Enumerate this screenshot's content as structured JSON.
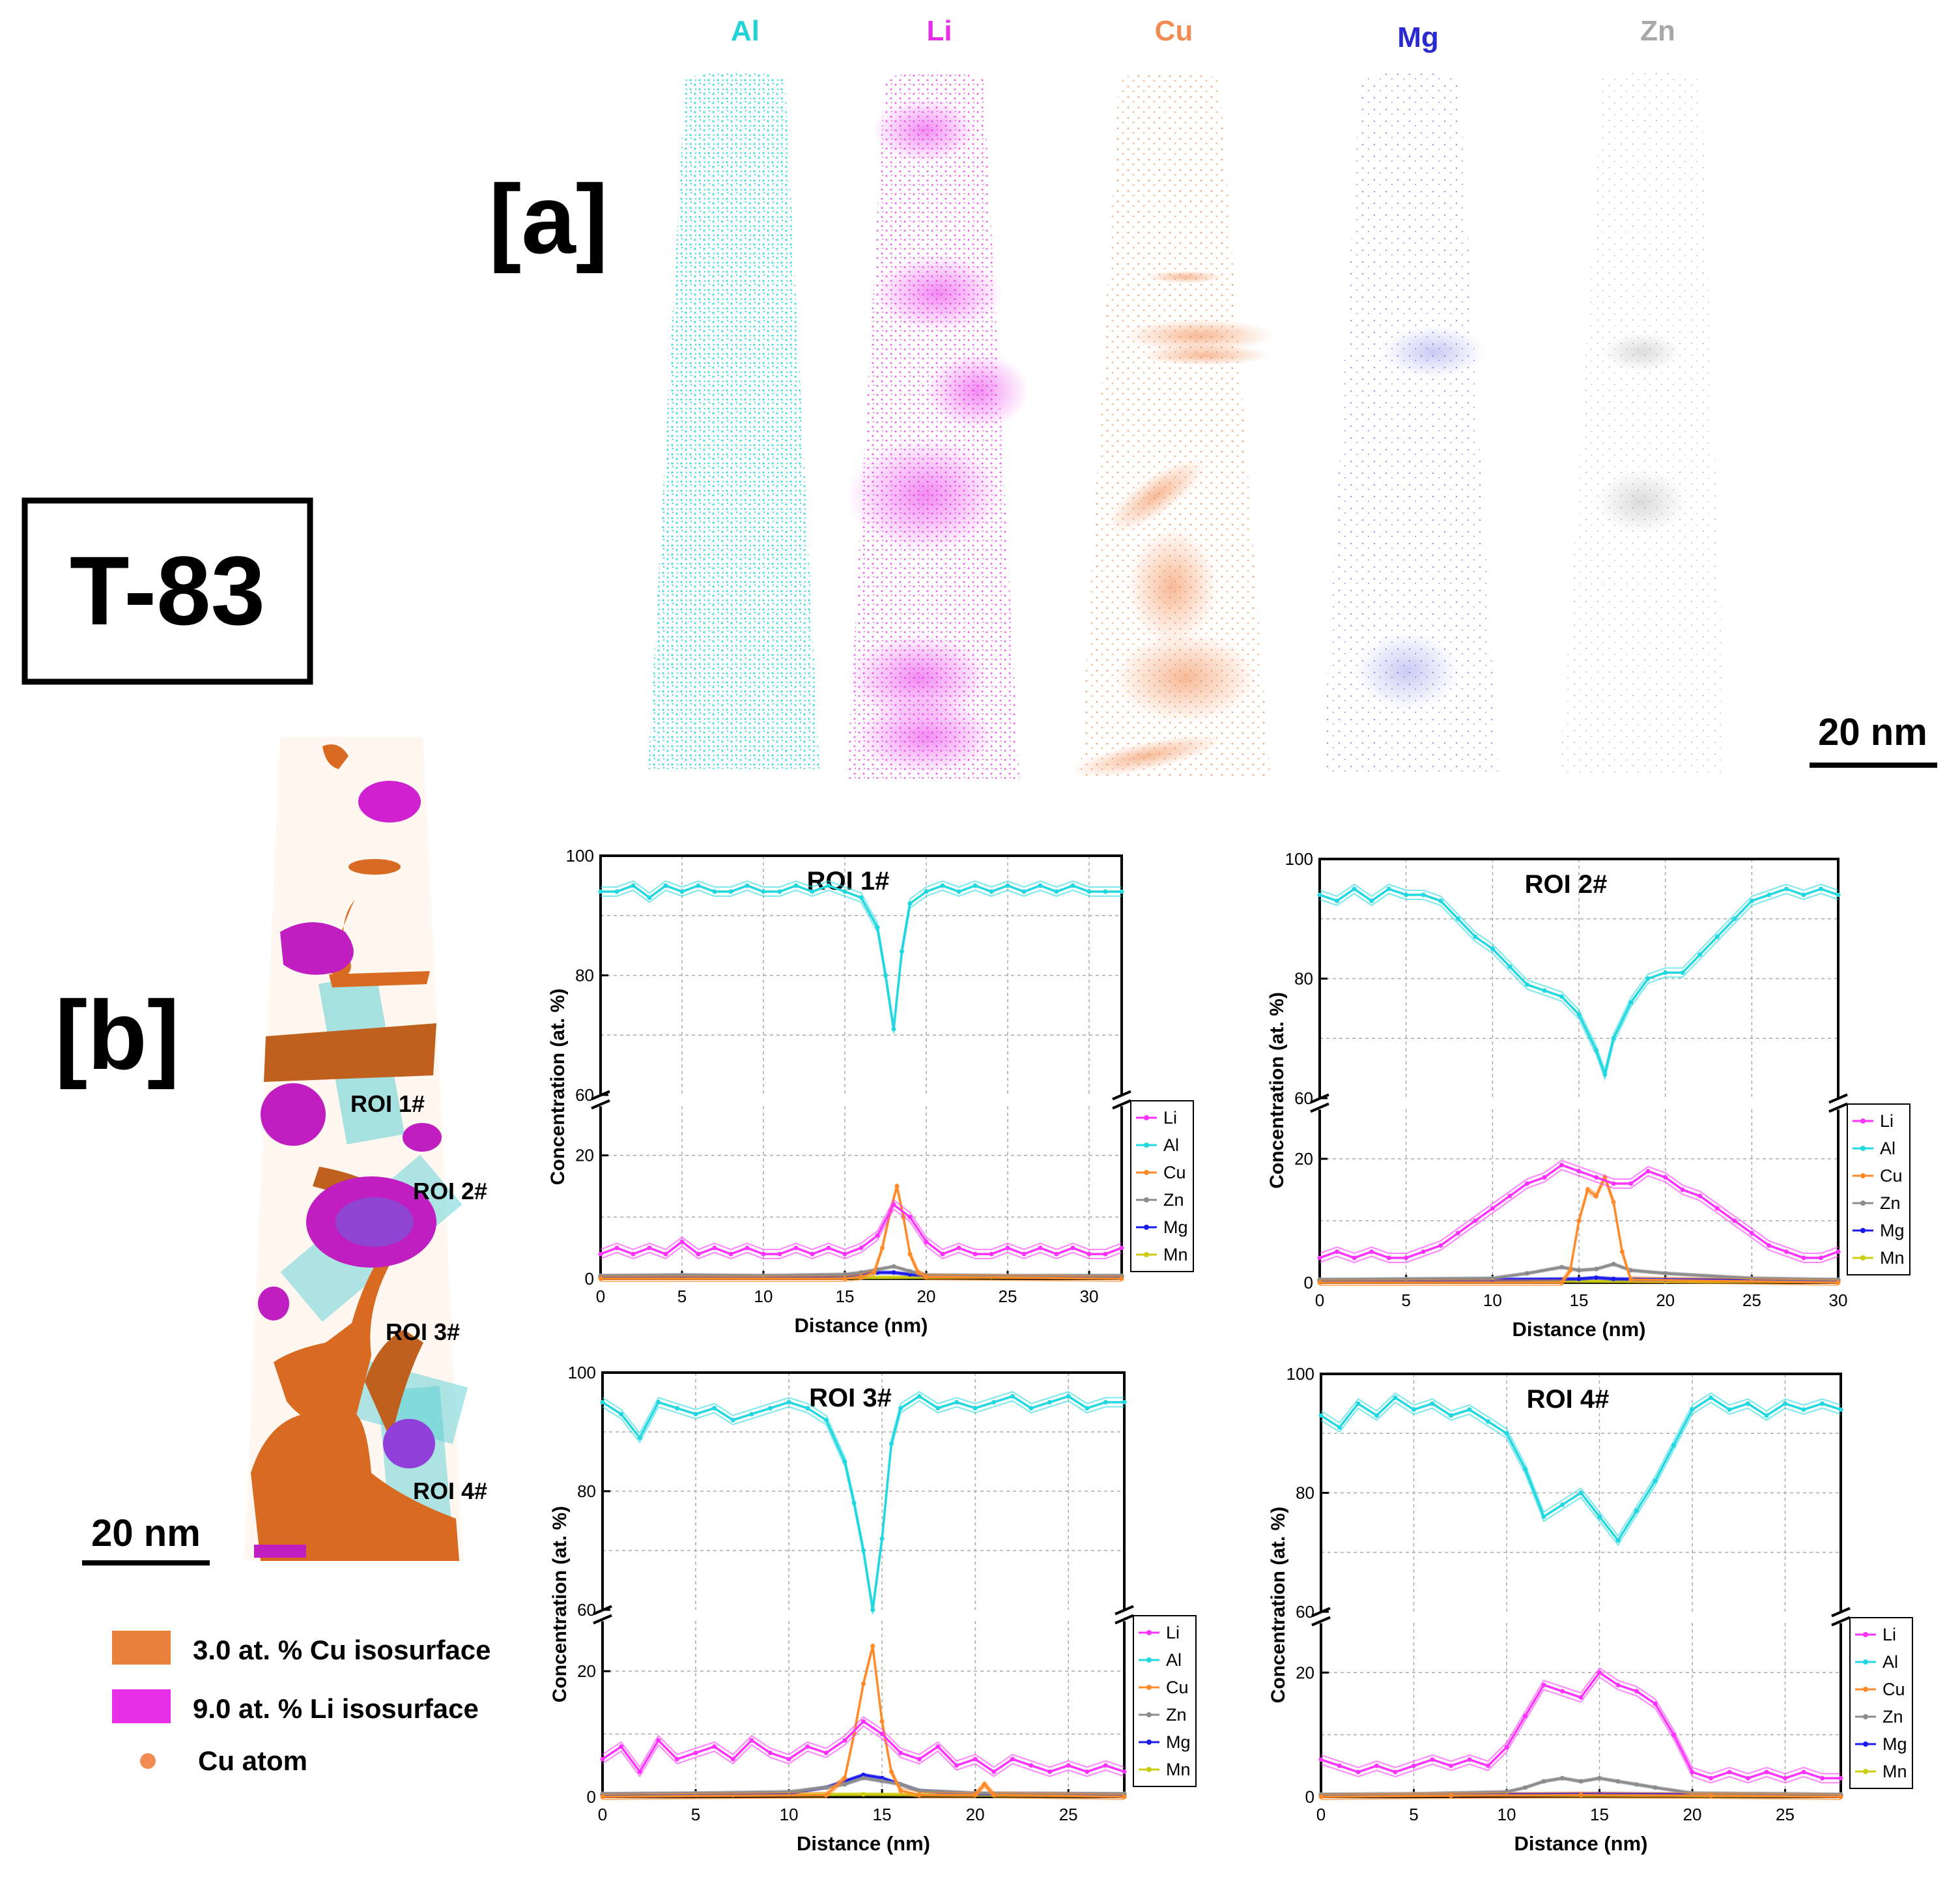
{
  "sample_label": "T-83",
  "panel_a": {
    "label": "[a]",
    "elements": [
      {
        "name": "Al",
        "color": "#22d3d8"
      },
      {
        "name": "Li",
        "color": "#e62fe6"
      },
      {
        "name": "Cu",
        "color": "#f08c52"
      },
      {
        "name": "Mg",
        "color": "#2a2ad0"
      },
      {
        "name": "Zn",
        "color": "#a8a8a8"
      }
    ],
    "scale_bar": "20 nm"
  },
  "panel_b": {
    "label": "[b]",
    "roi_labels": [
      "ROI 1#",
      "ROI 2#",
      "ROI 3#",
      "ROI 4#"
    ],
    "scale_bar": "20 nm",
    "legend": [
      {
        "label": "3.0 at. % Cu isosurface",
        "color": "#e8823a"
      },
      {
        "label": "9.0 at. % Li isosurface",
        "color": "#e62fe6"
      },
      {
        "label": "Cu atom",
        "color": "#f08c52"
      }
    ]
  },
  "colors": {
    "Li": "#ff33ff",
    "Al": "#22d8e0",
    "Cu": "#ff8a2a",
    "Zn": "#8c8c8c",
    "Mg": "#1a1aee",
    "Mn": "#cccc10"
  },
  "chart_data": [
    {
      "type": "line",
      "title": "ROI 1#",
      "xlabel": "Distance (nm)",
      "ylabel": "Concentration (at. %)",
      "xlim": [
        0,
        32
      ],
      "xticks": [
        0,
        5,
        10,
        15,
        20,
        25,
        30
      ],
      "upper_ylim": [
        60,
        100
      ],
      "upper_yticks": [
        60,
        80,
        100
      ],
      "lower_ylim": [
        0,
        28
      ],
      "lower_yticks": [
        0,
        20
      ],
      "legend": [
        "Li",
        "Al",
        "Cu",
        "Zn",
        "Mg",
        "Mn"
      ],
      "series": [
        {
          "name": "Al",
          "x": [
            0,
            1,
            2,
            3,
            4,
            5,
            6,
            7,
            8,
            9,
            10,
            11,
            12,
            13,
            14,
            15,
            16,
            17,
            17.5,
            18,
            18.5,
            19,
            20,
            21,
            22,
            23,
            24,
            25,
            26,
            27,
            28,
            29,
            30,
            31,
            32
          ],
          "values": [
            94,
            94,
            95,
            93,
            95,
            94,
            95,
            94,
            94,
            95,
            94,
            94,
            95,
            94,
            95,
            94,
            93,
            88,
            80,
            71,
            84,
            92,
            94,
            95,
            94,
            95,
            94,
            95,
            94,
            95,
            94,
            95,
            94,
            94,
            94
          ]
        },
        {
          "name": "Li",
          "x": [
            0,
            1,
            2,
            3,
            4,
            5,
            6,
            7,
            8,
            9,
            10,
            11,
            12,
            13,
            14,
            15,
            16,
            17,
            18,
            19,
            20,
            21,
            22,
            23,
            24,
            25,
            26,
            27,
            28,
            29,
            30,
            31,
            32
          ],
          "values": [
            4,
            5,
            4,
            5,
            4,
            6,
            4,
            5,
            4,
            5,
            4,
            4,
            5,
            4,
            5,
            4,
            5,
            7,
            12,
            10,
            6,
            4,
            5,
            4,
            4,
            5,
            4,
            5,
            4,
            5,
            4,
            4,
            5
          ]
        },
        {
          "name": "Cu",
          "x": [
            0,
            15,
            16,
            16.8,
            17.3,
            17.8,
            18.2,
            18.6,
            19,
            19.5,
            20,
            32
          ],
          "values": [
            0,
            0,
            0.3,
            1,
            5,
            11,
            15,
            10,
            4,
            1,
            0.3,
            0
          ]
        },
        {
          "name": "Zn",
          "x": [
            0,
            5,
            10,
            15,
            16,
            17,
            18,
            19,
            20,
            25,
            32
          ],
          "values": [
            0.5,
            0.6,
            0.5,
            0.7,
            1,
            1.5,
            2,
            1.2,
            0.6,
            0.5,
            0.5
          ]
        },
        {
          "name": "Mg",
          "x": [
            0,
            5,
            10,
            15,
            16,
            17,
            18,
            19,
            20,
            25,
            32
          ],
          "values": [
            0.4,
            0.5,
            0.4,
            0.5,
            0.8,
            1,
            1,
            0.7,
            0.5,
            0.4,
            0.4
          ]
        },
        {
          "name": "Mn",
          "x": [
            0,
            8,
            16,
            24,
            32
          ],
          "values": [
            0.2,
            0.3,
            0.2,
            0.3,
            0.2
          ]
        }
      ]
    },
    {
      "type": "line",
      "title": "ROI 2#",
      "xlabel": "Distance (nm)",
      "ylabel": "Concentration (at. %)",
      "xlim": [
        0,
        30
      ],
      "xticks": [
        0,
        5,
        10,
        15,
        20,
        25,
        30
      ],
      "upper_ylim": [
        60,
        100
      ],
      "upper_yticks": [
        60,
        80,
        100
      ],
      "lower_ylim": [
        0,
        28
      ],
      "lower_yticks": [
        0,
        20
      ],
      "legend": [
        "Li",
        "Al",
        "Cu",
        "Zn",
        "Mg",
        "Mn"
      ],
      "series": [
        {
          "name": "Al",
          "x": [
            0,
            1,
            2,
            3,
            4,
            5,
            6,
            7,
            8,
            9,
            10,
            11,
            12,
            13,
            14,
            15,
            16,
            16.5,
            17,
            18,
            19,
            20,
            21,
            22,
            23,
            24,
            25,
            26,
            27,
            28,
            29,
            30
          ],
          "values": [
            94,
            93,
            95,
            93,
            95,
            94,
            94,
            93,
            90,
            87,
            85,
            82,
            79,
            78,
            77,
            74,
            68,
            64,
            70,
            76,
            80,
            81,
            81,
            84,
            87,
            90,
            93,
            94,
            95,
            94,
            95,
            94
          ]
        },
        {
          "name": "Li",
          "x": [
            0,
            1,
            2,
            3,
            4,
            5,
            6,
            7,
            8,
            9,
            10,
            11,
            12,
            13,
            14,
            15,
            16,
            17,
            18,
            19,
            20,
            21,
            22,
            23,
            24,
            25,
            26,
            27,
            28,
            29,
            30
          ],
          "values": [
            4,
            5,
            4,
            5,
            4,
            4,
            5,
            6,
            8,
            10,
            12,
            14,
            16,
            17,
            19,
            18,
            17,
            16,
            16,
            18,
            17,
            15,
            14,
            12,
            10,
            8,
            6,
            5,
            4,
            4,
            5
          ]
        },
        {
          "name": "Cu",
          "x": [
            0,
            14,
            14.5,
            15,
            15.5,
            16,
            16.5,
            17,
            17.5,
            18,
            30
          ],
          "values": [
            0,
            0,
            2,
            10,
            15,
            14,
            17,
            13,
            5,
            0.5,
            0
          ]
        },
        {
          "name": "Zn",
          "x": [
            0,
            5,
            10,
            12,
            14,
            15,
            16,
            17,
            18,
            20,
            25,
            30
          ],
          "values": [
            0.5,
            0.6,
            0.7,
            1.5,
            2.5,
            2,
            2.2,
            3,
            2,
            1.5,
            0.7,
            0.5
          ]
        },
        {
          "name": "Mg",
          "x": [
            0,
            10,
            15,
            16,
            17,
            20,
            30
          ],
          "values": [
            0.4,
            0.5,
            0.6,
            0.8,
            0.6,
            0.5,
            0.4
          ]
        },
        {
          "name": "Mn",
          "x": [
            0,
            10,
            20,
            30
          ],
          "values": [
            0.2,
            0.3,
            0.2,
            0.2
          ]
        }
      ]
    },
    {
      "type": "line",
      "title": "ROI 3#",
      "xlabel": "Distance (nm)",
      "ylabel": "Concentration (at. %)",
      "xlim": [
        0,
        28
      ],
      "xticks": [
        0,
        5,
        10,
        15,
        20,
        25
      ],
      "upper_ylim": [
        60,
        100
      ],
      "upper_yticks": [
        60,
        80,
        100
      ],
      "lower_ylim": [
        0,
        28
      ],
      "lower_yticks": [
        0,
        20
      ],
      "legend": [
        "Li",
        "Al",
        "Cu",
        "Zn",
        "Mg",
        "Mn"
      ],
      "series": [
        {
          "name": "Al",
          "x": [
            0,
            1,
            2,
            3,
            4,
            5,
            6,
            7,
            8,
            9,
            10,
            11,
            12,
            13,
            13.5,
            14,
            14.5,
            15,
            15.5,
            16,
            17,
            18,
            19,
            20,
            21,
            22,
            23,
            24,
            25,
            26,
            27,
            28
          ],
          "values": [
            95,
            93,
            89,
            95,
            94,
            93,
            94,
            92,
            93,
            94,
            95,
            94,
            92,
            85,
            78,
            70,
            60,
            72,
            88,
            94,
            96,
            94,
            95,
            94,
            95,
            96,
            94,
            95,
            96,
            94,
            95,
            95
          ]
        },
        {
          "name": "Li",
          "x": [
            0,
            1,
            2,
            3,
            4,
            5,
            6,
            7,
            8,
            9,
            10,
            11,
            12,
            13,
            14,
            15,
            16,
            17,
            18,
            19,
            20,
            21,
            22,
            23,
            24,
            25,
            26,
            27,
            28
          ],
          "values": [
            6,
            8,
            4,
            9,
            6,
            7,
            8,
            6,
            9,
            7,
            6,
            8,
            7,
            9,
            12,
            10,
            7,
            6,
            8,
            5,
            6,
            4,
            6,
            5,
            4,
            5,
            4,
            5,
            4
          ]
        },
        {
          "name": "Cu",
          "x": [
            0,
            12,
            13,
            13.5,
            14,
            14.5,
            15,
            15.5,
            16,
            17,
            20,
            20.5,
            21,
            28
          ],
          "values": [
            0,
            0.3,
            3,
            10,
            18,
            24,
            12,
            4,
            1,
            0.3,
            0.3,
            2,
            0.3,
            0
          ]
        },
        {
          "name": "Zn",
          "x": [
            0,
            5,
            10,
            12,
            13,
            14,
            15,
            16,
            17,
            20,
            28
          ],
          "values": [
            0.5,
            0.6,
            0.8,
            1.5,
            2,
            3,
            2.5,
            2,
            1,
            0.6,
            0.5
          ]
        },
        {
          "name": "Mg",
          "x": [
            0,
            5,
            10,
            12,
            13,
            14,
            15,
            16,
            17,
            20,
            28
          ],
          "values": [
            0.4,
            0.5,
            0.6,
            1.5,
            2.5,
            3.5,
            3,
            2,
            1,
            0.5,
            0.4
          ]
        },
        {
          "name": "Mn",
          "x": [
            0,
            7,
            14,
            21,
            28
          ],
          "values": [
            0.2,
            0.3,
            0.4,
            0.3,
            0.2
          ]
        }
      ]
    },
    {
      "type": "line",
      "title": "ROI 4#",
      "xlabel": "Distance (nm)",
      "ylabel": "Concentration (at. %)",
      "xlim": [
        0,
        28
      ],
      "xticks": [
        0,
        5,
        10,
        15,
        20,
        25
      ],
      "upper_ylim": [
        60,
        100
      ],
      "upper_yticks": [
        60,
        80,
        100
      ],
      "lower_ylim": [
        0,
        28
      ],
      "lower_yticks": [
        0,
        20
      ],
      "legend": [
        "Li",
        "Al",
        "Cu",
        "Zn",
        "Mg",
        "Mn"
      ],
      "series": [
        {
          "name": "Al",
          "x": [
            0,
            1,
            2,
            3,
            4,
            5,
            6,
            7,
            8,
            9,
            10,
            11,
            12,
            13,
            14,
            15,
            16,
            17,
            18,
            19,
            20,
            21,
            22,
            23,
            24,
            25,
            26,
            27,
            28
          ],
          "values": [
            93,
            91,
            95,
            93,
            96,
            94,
            95,
            93,
            94,
            92,
            90,
            84,
            76,
            78,
            80,
            76,
            72,
            77,
            82,
            88,
            94,
            96,
            94,
            95,
            93,
            95,
            94,
            95,
            94
          ]
        },
        {
          "name": "Li",
          "x": [
            0,
            1,
            2,
            3,
            4,
            5,
            6,
            7,
            8,
            9,
            10,
            11,
            12,
            13,
            14,
            15,
            16,
            17,
            18,
            19,
            20,
            21,
            22,
            23,
            24,
            25,
            26,
            27,
            28
          ],
          "values": [
            6,
            5,
            4,
            5,
            4,
            5,
            6,
            5,
            6,
            5,
            8,
            13,
            18,
            17,
            16,
            20,
            18,
            17,
            15,
            10,
            4,
            3,
            4,
            3,
            4,
            3,
            4,
            3,
            3
          ]
        },
        {
          "name": "Cu",
          "x": [
            0,
            7,
            14,
            21,
            28
          ],
          "values": [
            0,
            0.2,
            0.3,
            0.2,
            0
          ]
        },
        {
          "name": "Zn",
          "x": [
            0,
            5,
            10,
            11,
            12,
            13,
            14,
            15,
            16,
            17,
            18,
            20,
            25,
            28
          ],
          "values": [
            0.4,
            0.5,
            0.8,
            1.5,
            2.5,
            3,
            2.5,
            3,
            2.5,
            2,
            1.5,
            0.6,
            0.5,
            0.4
          ]
        },
        {
          "name": "Mg",
          "x": [
            0,
            10,
            15,
            20,
            28
          ],
          "values": [
            0.3,
            0.4,
            0.5,
            0.4,
            0.3
          ]
        },
        {
          "name": "Mn",
          "x": [
            0,
            7,
            14,
            21,
            28
          ],
          "values": [
            0.2,
            0.4,
            0.3,
            0.2,
            0.2
          ]
        }
      ]
    }
  ]
}
